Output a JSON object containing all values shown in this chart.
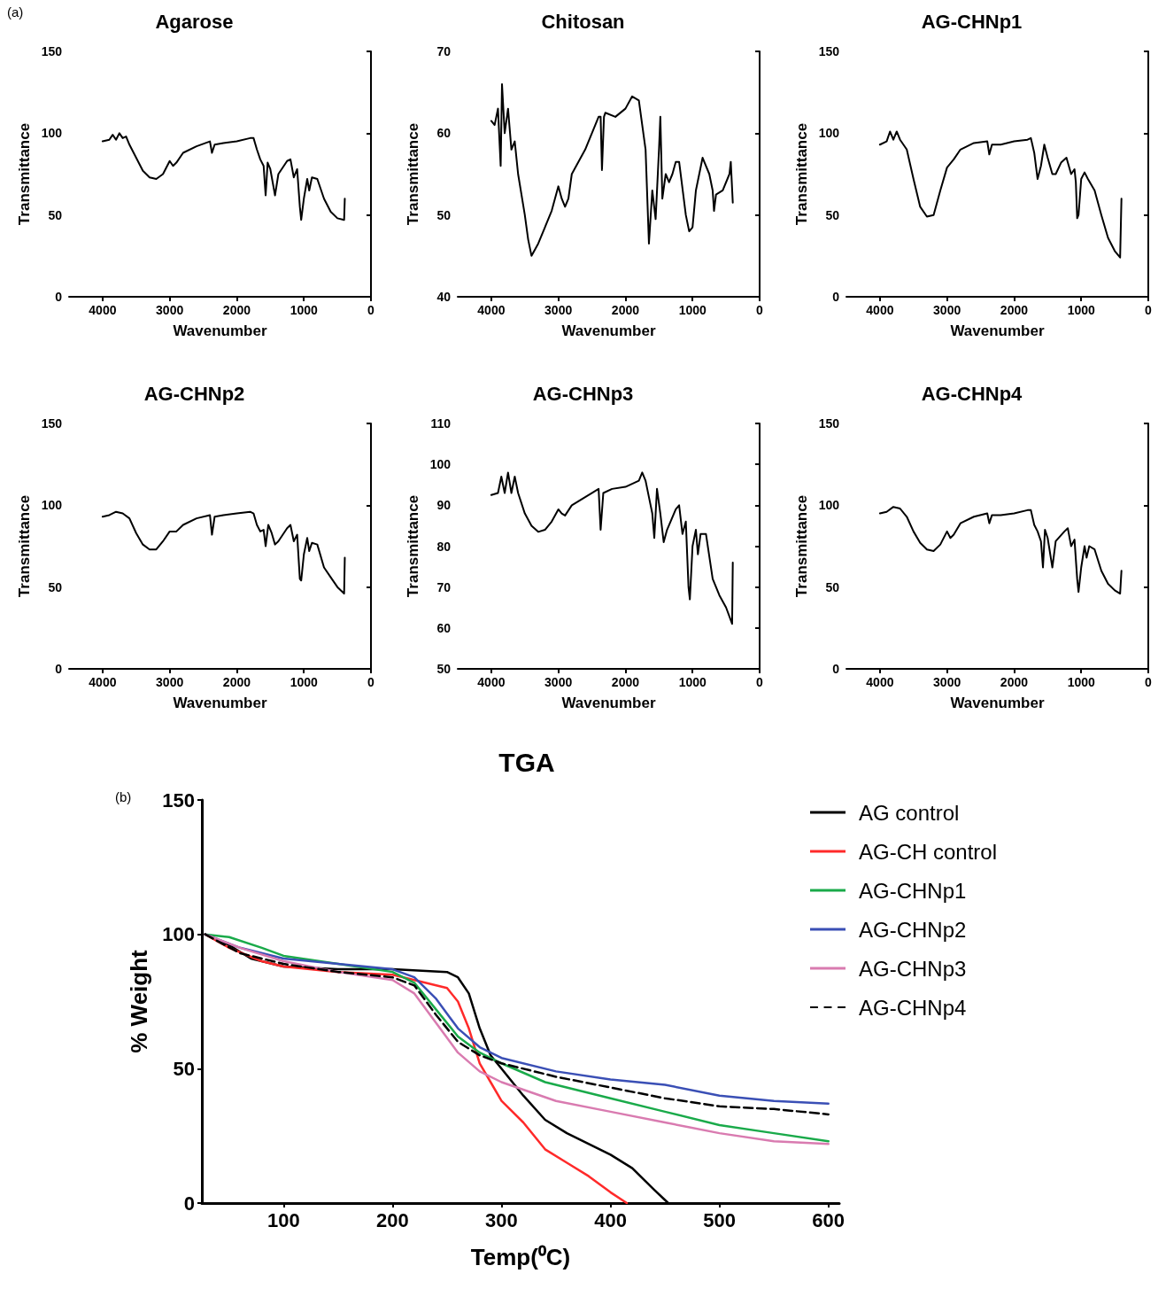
{
  "chart_data": [
    {
      "type": "line",
      "title": "Agarose",
      "xlabel": "Wavenumber",
      "ylabel": "Transmittance",
      "annotations": [
        "(a)"
      ],
      "xlim": [
        4500,
        0
      ],
      "xticks": [
        4000,
        3000,
        2000,
        1000,
        0
      ],
      "ylim": [
        0,
        150
      ],
      "yticks": [
        0,
        50,
        100,
        150
      ],
      "marker": "none",
      "line_style": "solid",
      "grid": false,
      "legend": false,
      "series": [
        {
          "color": "#000000",
          "x": [
            4000,
            3900,
            3850,
            3800,
            3750,
            3700,
            3650,
            3600,
            3500,
            3400,
            3300,
            3200,
            3100,
            3000,
            2950,
            2900,
            2800,
            2600,
            2400,
            2370,
            2330,
            2200,
            2000,
            1800,
            1750,
            1700,
            1650,
            1600,
            1570,
            1540,
            1500,
            1430,
            1380,
            1250,
            1200,
            1150,
            1100,
            1060,
            1040,
            1000,
            950,
            920,
            880,
            800,
            700,
            600,
            500,
            400,
            390
          ],
          "values": [
            95,
            96,
            99,
            96,
            100,
            97,
            98,
            93,
            85,
            77,
            73,
            72,
            75,
            83,
            80,
            82,
            88,
            92,
            95,
            88,
            93,
            94,
            95,
            97,
            97,
            90,
            84,
            80,
            62,
            82,
            78,
            62,
            75,
            83,
            84,
            73,
            78,
            55,
            47,
            60,
            72,
            65,
            73,
            72,
            60,
            52,
            48,
            47,
            60
          ]
        }
      ]
    },
    {
      "type": "line",
      "title": "Chitosan",
      "xlabel": "Wavenumber",
      "ylabel": "Transmittance",
      "xlim": [
        4500,
        0
      ],
      "xticks": [
        4000,
        3000,
        2000,
        1000,
        0
      ],
      "ylim": [
        40,
        70
      ],
      "yticks": [
        40,
        50,
        60,
        70
      ],
      "marker": "none",
      "line_style": "solid",
      "grid": false,
      "legend": false,
      "series": [
        {
          "color": "#000000",
          "x": [
            4000,
            3950,
            3900,
            3860,
            3840,
            3800,
            3750,
            3700,
            3650,
            3600,
            3500,
            3450,
            3400,
            3300,
            3200,
            3100,
            3000,
            2950,
            2900,
            2850,
            2800,
            2600,
            2400,
            2370,
            2350,
            2320,
            2300,
            2150,
            2000,
            1900,
            1800,
            1700,
            1650,
            1600,
            1550,
            1500,
            1480,
            1450,
            1400,
            1350,
            1300,
            1250,
            1200,
            1100,
            1050,
            1000,
            950,
            850,
            750,
            700,
            680,
            650,
            550,
            450,
            430,
            400
          ],
          "values": [
            61.5,
            61,
            63,
            56,
            66,
            60,
            63,
            58,
            59,
            55,
            50,
            47,
            45,
            46.5,
            48.5,
            50.5,
            53.5,
            52,
            51,
            52,
            55,
            58,
            62,
            62,
            55.5,
            62,
            62.5,
            62,
            63,
            64.5,
            64,
            58,
            46.5,
            53,
            49.5,
            58,
            62,
            52,
            55,
            54,
            55,
            56.5,
            56.5,
            50,
            48,
            48.5,
            53,
            57,
            55,
            53,
            50.5,
            52.5,
            53,
            55,
            56.5,
            51.5
          ]
        }
      ]
    },
    {
      "type": "line",
      "title": "AG-CHNp1",
      "xlabel": "Wavenumber",
      "ylabel": "Transmittance",
      "xlim": [
        4500,
        0
      ],
      "xticks": [
        4000,
        3000,
        2000,
        1000,
        0
      ],
      "ylim": [
        0,
        150
      ],
      "yticks": [
        0,
        50,
        100,
        150
      ],
      "marker": "none",
      "line_style": "solid",
      "grid": false,
      "legend": false,
      "series": [
        {
          "color": "#000000",
          "x": [
            4000,
            3900,
            3850,
            3800,
            3750,
            3700,
            3600,
            3500,
            3400,
            3300,
            3200,
            3100,
            3000,
            2900,
            2800,
            2600,
            2400,
            2370,
            2330,
            2200,
            2000,
            1800,
            1750,
            1700,
            1650,
            1600,
            1550,
            1500,
            1430,
            1380,
            1300,
            1220,
            1150,
            1100,
            1080,
            1060,
            1040,
            1000,
            950,
            900,
            800,
            700,
            600,
            500,
            420,
            400
          ],
          "values": [
            93,
            95,
            101,
            96,
            101,
            96,
            90,
            72,
            55,
            49,
            50,
            65,
            79,
            84,
            90,
            94,
            95,
            87,
            93,
            93,
            95,
            96,
            97,
            88,
            72,
            80,
            93,
            85,
            75,
            75,
            82,
            85,
            75,
            78,
            70,
            48,
            50,
            72,
            76,
            72,
            65,
            50,
            36,
            28,
            24,
            60
          ]
        }
      ]
    },
    {
      "type": "line",
      "title": "AG-CHNp2",
      "xlabel": "Wavenumber",
      "ylabel": "Transmittance",
      "xlim": [
        4500,
        0
      ],
      "xticks": [
        4000,
        3000,
        2000,
        1000,
        0
      ],
      "ylim": [
        0,
        150
      ],
      "yticks": [
        0,
        50,
        100,
        150
      ],
      "marker": "none",
      "line_style": "solid",
      "grid": false,
      "legend": false,
      "series": [
        {
          "color": "#000000",
          "x": [
            4000,
            3900,
            3800,
            3700,
            3600,
            3500,
            3400,
            3300,
            3200,
            3100,
            3000,
            2900,
            2800,
            2600,
            2400,
            2370,
            2330,
            2200,
            2000,
            1800,
            1750,
            1700,
            1650,
            1600,
            1570,
            1530,
            1480,
            1430,
            1380,
            1250,
            1200,
            1150,
            1100,
            1060,
            1040,
            1000,
            950,
            920,
            880,
            800,
            700,
            600,
            500,
            400,
            390
          ],
          "values": [
            93,
            94,
            96,
            95,
            92,
            83,
            76,
            73,
            73,
            78,
            84,
            84,
            88,
            92,
            94,
            82,
            93,
            94,
            95,
            96,
            95,
            88,
            84,
            85,
            75,
            88,
            83,
            76,
            78,
            86,
            88,
            78,
            82,
            55,
            54,
            70,
            80,
            72,
            77,
            76,
            62,
            56,
            50,
            46,
            68
          ]
        }
      ]
    },
    {
      "type": "line",
      "title": "AG-CHNp3",
      "xlabel": "Wavenumber",
      "ylabel": "Transmittance",
      "xlim": [
        4500,
        0
      ],
      "xticks": [
        4000,
        3000,
        2000,
        1000,
        0
      ],
      "ylim": [
        50,
        110
      ],
      "yticks": [
        50,
        60,
        70,
        80,
        90,
        100,
        110
      ],
      "marker": "none",
      "line_style": "solid",
      "grid": false,
      "legend": false,
      "series": [
        {
          "color": "#000000",
          "x": [
            4000,
            3900,
            3850,
            3800,
            3750,
            3700,
            3650,
            3600,
            3500,
            3400,
            3300,
            3200,
            3100,
            3000,
            2950,
            2900,
            2800,
            2600,
            2400,
            2370,
            2330,
            2200,
            2000,
            1800,
            1750,
            1700,
            1650,
            1600,
            1570,
            1530,
            1480,
            1430,
            1380,
            1250,
            1200,
            1150,
            1100,
            1060,
            1040,
            1000,
            950,
            920,
            880,
            800,
            700,
            600,
            500,
            410,
            400
          ],
          "values": [
            92.5,
            93,
            97,
            93,
            98,
            93,
            97,
            93,
            88,
            85,
            83.5,
            84,
            86,
            89,
            88,
            87.5,
            90,
            92,
            94,
            84,
            93,
            94,
            94.5,
            96,
            98,
            96,
            92,
            88,
            82,
            94,
            88,
            81,
            84,
            89,
            90,
            83,
            86,
            70,
            67,
            80,
            84,
            78,
            83,
            83,
            72,
            68,
            65,
            61,
            76
          ]
        }
      ]
    },
    {
      "type": "line",
      "title": "AG-CHNp4",
      "xlabel": "Wavenumber",
      "ylabel": "Transmittance",
      "xlim": [
        4500,
        0
      ],
      "xticks": [
        4000,
        3000,
        2000,
        1000,
        0
      ],
      "ylim": [
        0,
        150
      ],
      "yticks": [
        0,
        50,
        100,
        150
      ],
      "marker": "none",
      "line_style": "solid",
      "grid": false,
      "legend": false,
      "series": [
        {
          "color": "#000000",
          "x": [
            4000,
            3900,
            3800,
            3700,
            3600,
            3500,
            3400,
            3300,
            3200,
            3100,
            3000,
            2950,
            2900,
            2800,
            2600,
            2400,
            2370,
            2330,
            2200,
            2000,
            1800,
            1750,
            1700,
            1650,
            1600,
            1570,
            1540,
            1500,
            1430,
            1380,
            1250,
            1200,
            1150,
            1100,
            1060,
            1040,
            1000,
            950,
            920,
            880,
            800,
            700,
            600,
            500,
            420,
            400
          ],
          "values": [
            95,
            96,
            99,
            98,
            93,
            84,
            77,
            73,
            72,
            76,
            84,
            80,
            82,
            89,
            93,
            95,
            89,
            94,
            94,
            95,
            97,
            97,
            88,
            84,
            78,
            62,
            85,
            80,
            62,
            78,
            84,
            86,
            75,
            79,
            55,
            47,
            62,
            75,
            68,
            75,
            73,
            60,
            52,
            48,
            46,
            60
          ]
        }
      ]
    },
    {
      "type": "line",
      "title": "TGA",
      "xlabel": "Temp(⁰C)",
      "ylabel": "% Weight",
      "annotations": [
        "(b)"
      ],
      "xlim": [
        25,
        610
      ],
      "xticks": [
        100,
        200,
        300,
        400,
        500,
        600
      ],
      "ylim": [
        0,
        150
      ],
      "yticks": [
        0,
        50,
        100,
        150
      ],
      "marker": "none",
      "grid": false,
      "legend": "right",
      "series": [
        {
          "name": "AG control",
          "color": "#000000",
          "line_style": "solid",
          "x": [
            28,
            50,
            70,
            100,
            150,
            200,
            250,
            260,
            270,
            280,
            290,
            300,
            320,
            340,
            360,
            400,
            420,
            440,
            453
          ],
          "values": [
            100,
            96,
            91,
            88,
            87,
            87,
            86,
            84,
            78,
            65,
            55,
            50,
            40,
            31,
            26,
            18,
            13,
            5,
            0
          ]
        },
        {
          "name": "AG-CH control",
          "color": "#ff2a2a",
          "line_style": "solid",
          "x": [
            28,
            50,
            80,
            100,
            150,
            200,
            220,
            250,
            260,
            270,
            280,
            290,
            300,
            320,
            340,
            360,
            380,
            400,
            415
          ],
          "values": [
            100,
            95,
            90,
            88,
            86,
            85,
            83,
            80,
            75,
            65,
            52,
            45,
            38,
            30,
            20,
            15,
            10,
            4,
            0
          ]
        },
        {
          "name": "AG-CHNp1",
          "color": "#1aaa4a",
          "line_style": "solid",
          "x": [
            28,
            50,
            80,
            100,
            150,
            200,
            220,
            240,
            260,
            280,
            300,
            340,
            400,
            450,
            500,
            550,
            600
          ],
          "values": [
            100,
            99,
            95,
            92,
            89,
            86,
            82,
            72,
            62,
            56,
            52,
            45,
            39,
            34,
            29,
            26,
            23
          ]
        },
        {
          "name": "AG-CHNp2",
          "color": "#3a4fb5",
          "line_style": "solid",
          "x": [
            28,
            60,
            100,
            150,
            200,
            220,
            240,
            260,
            280,
            300,
            350,
            400,
            450,
            500,
            550,
            600
          ],
          "values": [
            100,
            95,
            91,
            89,
            87,
            84,
            76,
            65,
            58,
            54,
            49,
            46,
            44,
            40,
            38,
            37
          ]
        },
        {
          "name": "AG-CHNp3",
          "color": "#d97bb0",
          "line_style": "solid",
          "x": [
            28,
            60,
            100,
            150,
            200,
            220,
            240,
            260,
            280,
            300,
            350,
            400,
            450,
            500,
            550,
            600
          ],
          "values": [
            100,
            95,
            90,
            86,
            83,
            78,
            67,
            56,
            49,
            45,
            38,
            34,
            30,
            26,
            23,
            22
          ]
        },
        {
          "name": "AG-CHNp4",
          "color": "#000000",
          "line_style": "dashed",
          "x": [
            28,
            60,
            100,
            150,
            200,
            220,
            240,
            260,
            280,
            300,
            350,
            400,
            450,
            500,
            550,
            600
          ],
          "values": [
            100,
            93,
            89,
            86,
            84,
            81,
            70,
            60,
            55,
            52,
            47,
            43,
            39,
            36,
            35,
            33
          ]
        }
      ]
    }
  ]
}
